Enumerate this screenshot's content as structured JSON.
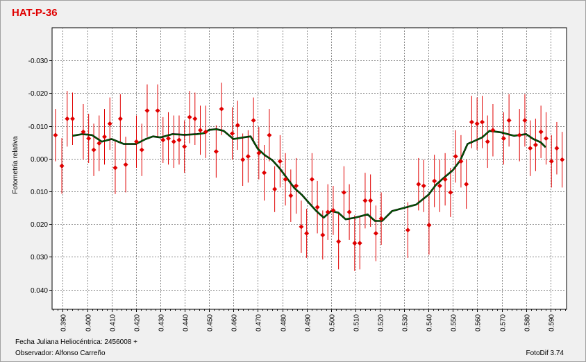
{
  "footer": {
    "line1": "Fecha Juliana Heliocéntrica: 2456008 +",
    "line2": "Observador: Alfonso Carreño",
    "software": "FotoDif 3.74"
  },
  "colors": {
    "background": "#f0f0f0",
    "plot_bg": "#ffffff",
    "points": "#e00000",
    "error_bars": "#e00000",
    "fit_line": "#006400",
    "grid": "#888888",
    "title": "#e00000"
  },
  "chart_data": {
    "type": "scatter",
    "title": "HAT-P-36",
    "xlabel": "",
    "ylabel": "Fotometría relativa",
    "xlim": [
      0.3856,
      0.5966
    ],
    "ylim": [
      0.046,
      -0.04
    ],
    "y_inverted": true,
    "grid": true,
    "x_ticks": [
      0.39,
      0.4,
      0.41,
      0.42,
      0.43,
      0.44,
      0.45,
      0.46,
      0.47,
      0.48,
      0.49,
      0.5,
      0.51,
      0.52,
      0.53,
      0.54,
      0.55,
      0.56,
      0.57,
      0.58,
      0.59
    ],
    "x_tick_labels": [
      "0.390",
      "0.400",
      "0.410",
      "0.420",
      "0.430",
      "0.440",
      "0.450",
      "0.460",
      "0.470",
      "0.480",
      "0.490",
      "0.500",
      "0.510",
      "0.520",
      "0.530",
      "0.540",
      "0.550",
      "0.560",
      "0.570",
      "0.580",
      "0.590"
    ],
    "y_ticks": [
      -0.03,
      -0.02,
      -0.01,
      0.0,
      0.01,
      0.02,
      0.03,
      0.04
    ],
    "y_tick_labels": [
      "-0.030",
      "-0.020",
      "-0.010",
      "0.000",
      "0.010",
      "0.020",
      "0.030",
      "0.040"
    ],
    "series": [
      {
        "kind": "points_with_error_bars",
        "x": [
          0.387,
          0.3896,
          0.3918,
          0.394,
          0.3984,
          0.4006,
          0.4027,
          0.4049,
          0.4071,
          0.4093,
          0.4115,
          0.4136,
          0.4158,
          0.4202,
          0.4224,
          0.4246,
          0.4289,
          0.4311,
          0.4333,
          0.4355,
          0.4377,
          0.4399,
          0.442,
          0.4442,
          0.4464,
          0.4486,
          0.4529,
          0.4551,
          0.4595,
          0.4617,
          0.4638,
          0.466,
          0.4682,
          0.4704,
          0.4726,
          0.4747,
          0.4769,
          0.4791,
          0.4813,
          0.4835,
          0.4857,
          0.4878,
          0.49,
          0.4922,
          0.4944,
          0.4966,
          0.4987,
          0.5009,
          0.5031,
          0.5053,
          0.5075,
          0.5097,
          0.5118,
          0.514,
          0.5162,
          0.5184,
          0.5206,
          0.5315,
          0.5359,
          0.538,
          0.5402,
          0.5424,
          0.5446,
          0.5468,
          0.549,
          0.5511,
          0.5533,
          0.5555,
          0.5577,
          0.5599,
          0.562,
          0.5642,
          0.5664,
          0.5708,
          0.573,
          0.5773,
          0.5795,
          0.5817,
          0.5839,
          0.5861,
          0.5882,
          0.5904,
          0.5926,
          0.5948
        ],
        "y": [
          -0.0072,
          0.0022,
          -0.0122,
          -0.0122,
          -0.0082,
          -0.0062,
          -0.0027,
          -0.0047,
          -0.0067,
          -0.0107,
          0.0028,
          -0.0122,
          0.0018,
          -0.0052,
          -0.0027,
          -0.0147,
          -0.0147,
          -0.0057,
          -0.0062,
          -0.0052,
          -0.0057,
          -0.0037,
          -0.0127,
          -0.0122,
          -0.0087,
          -0.0082,
          -0.0022,
          -0.0152,
          -0.0077,
          -0.0102,
          0.0003,
          -0.0007,
          -0.0117,
          -0.0017,
          0.0043,
          -0.0072,
          0.0093,
          0.0008,
          0.0063,
          0.0113,
          0.0083,
          0.0208,
          0.0228,
          0.0063,
          0.0148,
          0.0233,
          0.0163,
          0.0158,
          0.0253,
          0.0103,
          0.0163,
          0.0258,
          0.0258,
          0.0128,
          0.0128,
          0.0228,
          0.0183,
          0.0218,
          0.0078,
          0.0083,
          0.0203,
          0.0068,
          0.0083,
          0.0063,
          0.0103,
          -0.0007,
          0.0008,
          0.0078,
          -0.0112,
          -0.0107,
          -0.0112,
          -0.0052,
          -0.0087,
          -0.0062,
          -0.0117,
          -0.0072,
          -0.0117,
          -0.0032,
          -0.0042,
          -0.0082,
          -0.0062,
          0.0008,
          -0.0032,
          0.0003
        ],
        "err": [
          0.008,
          0.0085,
          0.0085,
          0.008,
          0.0085,
          0.0075,
          0.008,
          0.0085,
          0.0085,
          0.008,
          0.008,
          0.0075,
          0.0085,
          0.008,
          0.008,
          0.008,
          0.008,
          0.007,
          0.008,
          0.008,
          0.0075,
          0.008,
          0.008,
          0.008,
          0.0075,
          0.008,
          0.008,
          0.008,
          0.008,
          0.0075,
          0.008,
          0.008,
          0.007,
          0.008,
          0.0085,
          0.008,
          0.007,
          0.008,
          0.008,
          0.008,
          0.0085,
          0.008,
          0.0075,
          0.008,
          0.008,
          0.0075,
          0.0085,
          0.0075,
          0.0085,
          0.008,
          0.0085,
          0.0085,
          0.008,
          0.0085,
          0.008,
          0.0085,
          0.008,
          0.0085,
          0.008,
          0.008,
          0.009,
          0.008,
          0.008,
          0.008,
          0.0075,
          0.008,
          0.008,
          0.0075,
          0.008,
          0.008,
          0.008,
          0.008,
          0.008,
          0.008,
          0.008,
          0.008,
          0.008,
          0.0085,
          0.008,
          0.008,
          0.008,
          0.008,
          0.008,
          0.0085
        ]
      },
      {
        "kind": "line",
        "x": [
          0.394,
          0.398,
          0.402,
          0.406,
          0.41,
          0.415,
          0.42,
          0.424,
          0.427,
          0.43,
          0.435,
          0.44,
          0.445,
          0.448,
          0.45,
          0.453,
          0.456,
          0.46,
          0.464,
          0.467,
          0.47,
          0.473,
          0.476,
          0.479,
          0.482,
          0.485,
          0.488,
          0.491,
          0.494,
          0.497,
          0.5,
          0.503,
          0.506,
          0.51,
          0.515,
          0.518,
          0.521,
          0.525,
          0.53,
          0.535,
          0.54,
          0.543,
          0.546,
          0.55,
          0.553,
          0.556,
          0.559,
          0.562,
          0.565,
          0.57,
          0.575,
          0.58,
          0.583,
          0.586,
          0.588
        ],
        "y": [
          -0.007,
          -0.0075,
          -0.0072,
          -0.0052,
          -0.006,
          -0.0045,
          -0.0045,
          -0.006,
          -0.0068,
          -0.0065,
          -0.0075,
          -0.0073,
          -0.0075,
          -0.0078,
          -0.0088,
          -0.009,
          -0.0085,
          -0.006,
          -0.0065,
          -0.0068,
          -0.003,
          -0.001,
          0.0005,
          0.003,
          0.006,
          0.009,
          0.011,
          0.0135,
          0.016,
          0.018,
          0.016,
          0.0165,
          0.0185,
          0.018,
          0.017,
          0.019,
          0.019,
          0.016,
          0.015,
          0.014,
          0.011,
          0.008,
          0.006,
          0.0035,
          0.0005,
          -0.0045,
          -0.0055,
          -0.0065,
          -0.0085,
          -0.008,
          -0.007,
          -0.0075,
          -0.006,
          -0.005,
          -0.0035
        ]
      }
    ]
  }
}
